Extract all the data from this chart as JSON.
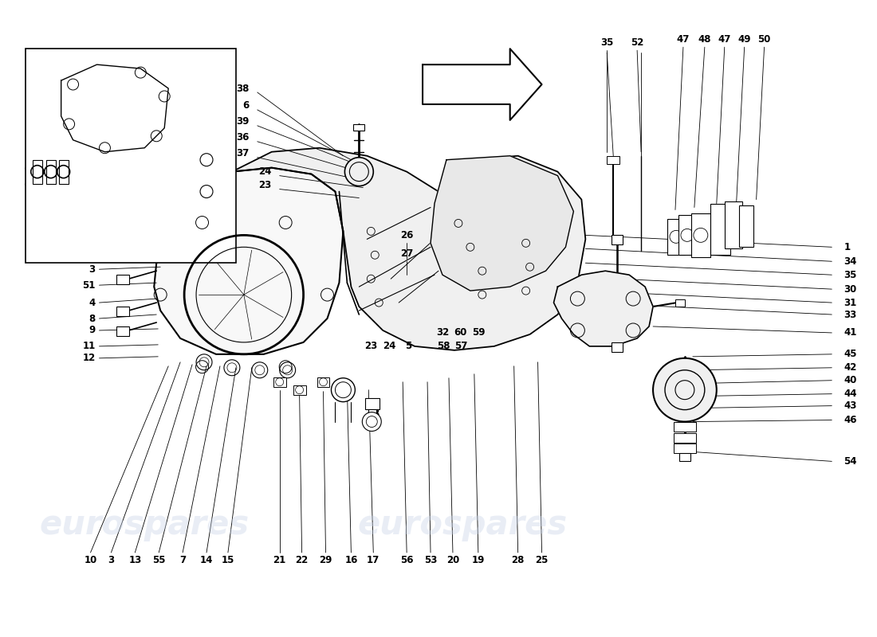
{
  "background_color": "#ffffff",
  "line_color": "#000000",
  "figsize": [
    11.0,
    8.0
  ],
  "dpi": 100,
  "watermark_color": "#c8d4e8",
  "watermark_alpha": 0.4,
  "watermark_fontsize": 30,
  "fs_label": 8.5
}
